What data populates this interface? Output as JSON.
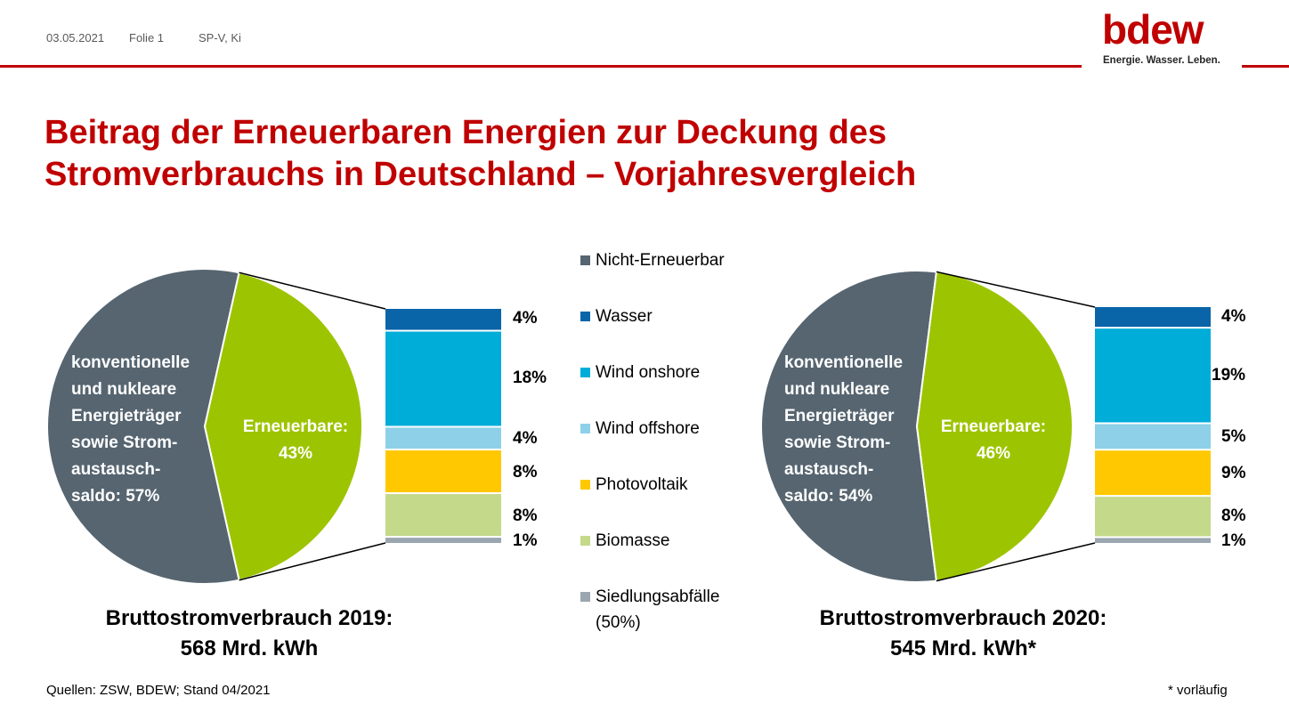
{
  "header": {
    "date": "03.05.2021",
    "slide": "Folie 1",
    "author": "SP-V, Ki"
  },
  "logo": {
    "word": "bdew",
    "tagline": "Energie. Wasser. Leben."
  },
  "title": {
    "line1": "Beitrag der Erneuerbaren Energien zur Deckung des",
    "line2": "Stromverbrauchs in Deutschland – Vorjahresvergleich"
  },
  "chart_data": [
    {
      "type": "pie",
      "year": "2019",
      "slices": [
        {
          "name": "Nicht-Erneuerbar",
          "value": 57,
          "color": "#566570"
        },
        {
          "name": "Erneuerbare",
          "value": 43,
          "color": "#9dc400"
        }
      ],
      "conventional_label": [
        "konventionelle",
        "und nukleare",
        "Energieträger",
        "sowie Strom-",
        "austausch-",
        "saldo: 57%"
      ],
      "renewable_label": [
        "Erneuerbare:",
        "43%"
      ],
      "breakdown": [
        {
          "name": "Wasser",
          "value": 4,
          "label": "4%"
        },
        {
          "name": "Wind onshore",
          "value": 18,
          "label": "18%"
        },
        {
          "name": "Wind offshore",
          "value": 4,
          "label": "4%"
        },
        {
          "name": "Photovoltaik",
          "value": 8,
          "label": "8%"
        },
        {
          "name": "Biomasse",
          "value": 8,
          "label": "8%"
        },
        {
          "name": "Siedlungsabfälle (50%)",
          "value": 1,
          "label": "1%"
        }
      ],
      "caption": [
        "Bruttostromverbrauch 2019:",
        "568 Mrd. kWh"
      ]
    },
    {
      "type": "pie",
      "year": "2020",
      "slices": [
        {
          "name": "Nicht-Erneuerbar",
          "value": 54,
          "color": "#566570"
        },
        {
          "name": "Erneuerbare",
          "value": 46,
          "color": "#9dc400"
        }
      ],
      "conventional_label": [
        "konventionelle",
        "und nukleare",
        "Energieträger",
        "sowie Strom-",
        "austausch-",
        "saldo: 54%"
      ],
      "renewable_label": [
        "Erneuerbare:",
        "46%"
      ],
      "breakdown": [
        {
          "name": "Wasser",
          "value": 4,
          "label": "4%"
        },
        {
          "name": "Wind onshore",
          "value": 19,
          "label": "19%"
        },
        {
          "name": "Wind offshore",
          "value": 5,
          "label": "5%"
        },
        {
          "name": "Photovoltaik",
          "value": 9,
          "label": "9%"
        },
        {
          "name": "Biomasse",
          "value": 8,
          "label": "8%"
        },
        {
          "name": "Siedlungsabfälle (50%)",
          "value": 1,
          "label": "1%"
        }
      ],
      "caption": [
        "Bruttostromverbrauch 2020:",
        "545 Mrd. kWh*"
      ]
    }
  ],
  "legend": [
    {
      "label": "Nicht-Erneuerbar",
      "color": "#566570"
    },
    {
      "label": "Wasser",
      "color": "#0a64a8"
    },
    {
      "label": "Wind onshore",
      "color": "#00acd8"
    },
    {
      "label": "Wind offshore",
      "color": "#8dd0e8"
    },
    {
      "label": "Photovoltaik",
      "color": "#ffc800"
    },
    {
      "label": "Biomasse",
      "color": "#c4d98a"
    },
    {
      "label": "Siedlungsabfälle",
      "label2": "(50%)",
      "color": "#9aa6b0"
    }
  ],
  "footer": {
    "sources": "Quellen: ZSW, BDEW; Stand 04/2021",
    "note": "* vorläufig"
  }
}
